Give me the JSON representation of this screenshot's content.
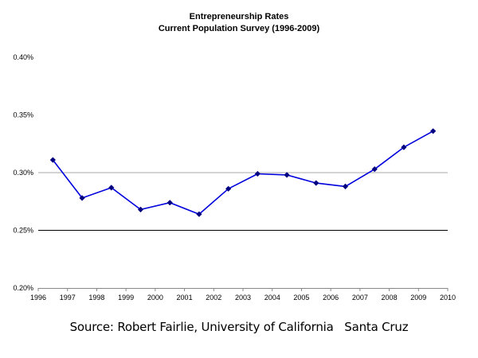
{
  "chart_data": {
    "type": "line",
    "title": "Entrepreneurship Rates",
    "subtitle": "Current Population Survey (1996-2009)",
    "xlabel": "",
    "ylabel": "",
    "xlim": [
      1996,
      2010
    ],
    "ylim": [
      0.2,
      0.4
    ],
    "x_ticks": [
      1996,
      1997,
      1998,
      1999,
      2000,
      2001,
      2002,
      2003,
      2004,
      2005,
      2006,
      2007,
      2008,
      2009,
      2010
    ],
    "x_tick_labels": [
      "1996",
      "1997",
      "1998",
      "1999",
      "2000",
      "2001",
      "2002",
      "2003",
      "2004",
      "2005",
      "2006",
      "2007",
      "2008",
      "2009",
      "2010"
    ],
    "y_ticks": [
      0.2,
      0.25,
      0.3,
      0.35,
      0.4
    ],
    "y_tick_labels": [
      "0.20%",
      "0.25%",
      "0.30%",
      "0.35%",
      "0.40%"
    ],
    "unit": "%",
    "grid": "horizontal lines at 0.25 and 0.30",
    "legend": "none",
    "series": [
      {
        "color": "#0000dd",
        "marker_color": "#000080",
        "marker": "diamond",
        "x": [
          1996.5,
          1997.5,
          1998.5,
          1999.5,
          2000.5,
          2001.5,
          2002.5,
          2003.5,
          2004.5,
          2005.5,
          2006.5,
          2007.5,
          2008.5,
          2009.5
        ],
        "values": [
          0.311,
          0.278,
          0.287,
          0.268,
          0.274,
          0.264,
          0.286,
          0.299,
          0.298,
          0.291,
          0.288,
          0.303,
          0.322,
          0.336
        ]
      }
    ]
  },
  "source": "Source: Robert Fairlie, University of California   Santa Cruz"
}
